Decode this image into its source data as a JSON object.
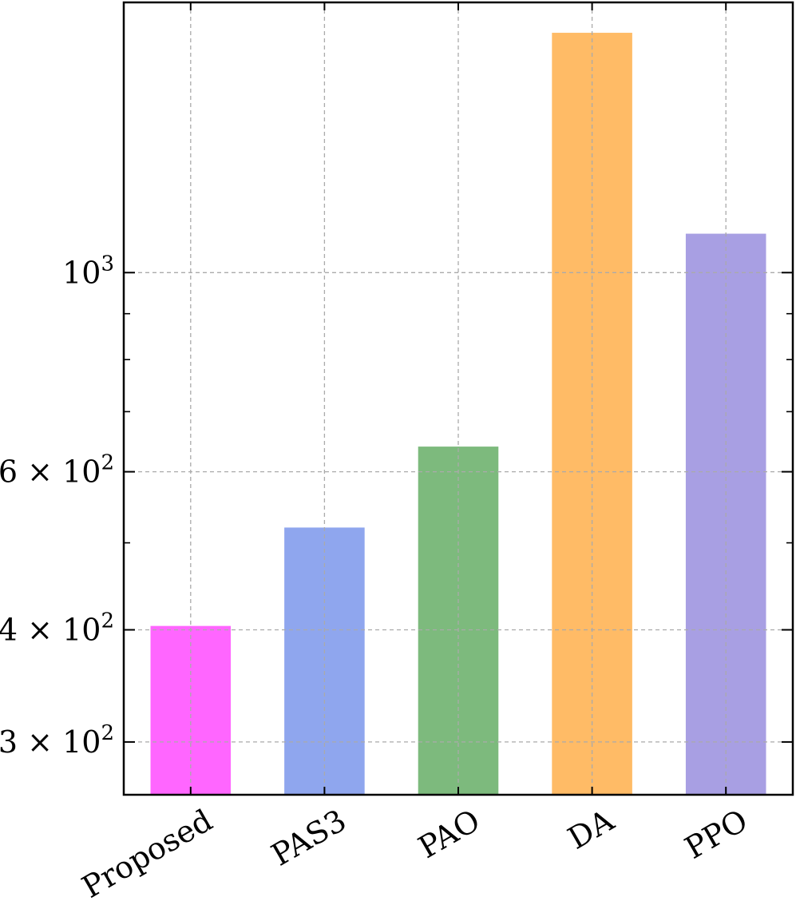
{
  "chart_data": {
    "type": "bar",
    "categories": [
      "Proposed",
      "PAS3",
      "PAO",
      "DA",
      "PPO"
    ],
    "values": [
      404,
      520,
      640,
      1850,
      1105
    ],
    "colors": [
      "#ff66ff",
      "#8fa6ee",
      "#7dba7d",
      "#ffbb66",
      "#a89fe3"
    ],
    "title": "",
    "xlabel": "",
    "ylabel": "",
    "yscale": "log",
    "ylim": [
      262,
      2000
    ],
    "grid": true,
    "labeled_yticks": [
      {
        "value": 300,
        "mantissa": "3",
        "base": "10",
        "exp": "2"
      },
      {
        "value": 400,
        "mantissa": "4",
        "base": "10",
        "exp": "2"
      },
      {
        "value": 600,
        "mantissa": "6",
        "base": "10",
        "exp": "2"
      },
      {
        "value": 1000,
        "mantissa": "",
        "base": "10",
        "exp": "3"
      }
    ],
    "minor_yticks": [
      500,
      700,
      800,
      900
    ]
  }
}
